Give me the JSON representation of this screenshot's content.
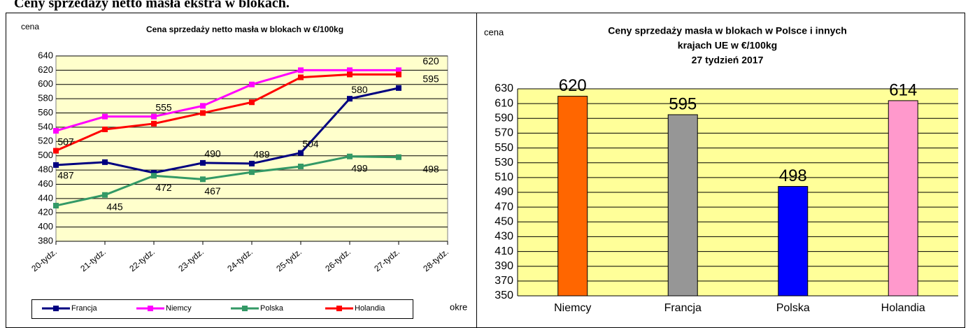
{
  "heading": "Ceny sprzedaży netto masła ekstra w blokach.",
  "chart_data": [
    {
      "type": "line",
      "title": "Cena sprzedaży netto masła  w blokach  w €/100kg",
      "ylabel": "cena",
      "xlabel": "okre",
      "categories": [
        "20-tydz.",
        "21-tydz.",
        "22-tydz.",
        "23-tydz.",
        "24-tydz.",
        "25-tydz.",
        "26-tydz.",
        "27-tydz.",
        "28-tydz."
      ],
      "ylim": [
        380,
        640
      ],
      "yticks": [
        380,
        400,
        420,
        440,
        460,
        480,
        500,
        520,
        540,
        560,
        580,
        600,
        620,
        640
      ],
      "grid": true,
      "legend": "bottom",
      "series": [
        {
          "name": "Francja",
          "color": "#000080",
          "values": [
            487,
            491,
            476,
            490,
            489,
            504,
            580,
            595,
            null
          ],
          "value_labels": [
            "487",
            null,
            null,
            "490",
            "489",
            "504",
            "580",
            "595",
            null
          ]
        },
        {
          "name": "Niemcy",
          "color": "#ff00ff",
          "values": [
            535,
            555,
            555,
            570,
            600,
            620,
            620,
            620,
            null
          ],
          "value_labels": [
            null,
            null,
            "555",
            null,
            null,
            null,
            null,
            "620",
            null
          ]
        },
        {
          "name": "Polska",
          "color": "#339966",
          "values": [
            430,
            445,
            472,
            467,
            477,
            485,
            499,
            498,
            null
          ],
          "value_labels": [
            null,
            "445",
            "472",
            "467",
            null,
            null,
            "499",
            "498",
            null
          ]
        },
        {
          "name": "Holandia",
          "color": "#ff0000",
          "values": [
            507,
            537,
            545,
            560,
            575,
            610,
            614,
            614,
            null
          ],
          "value_labels": [
            "507",
            null,
            null,
            null,
            null,
            null,
            null,
            null,
            null
          ]
        }
      ]
    },
    {
      "type": "bar",
      "title": [
        "Ceny sprzedaży masła w blokach w Polsce i  innych",
        "krajach UE w €/100kg",
        "27 tydzień 2017"
      ],
      "ylabel": "cena",
      "categories": [
        "Niemcy",
        "Francja",
        "Polska",
        "Holandia"
      ],
      "values": [
        620,
        595,
        498,
        614
      ],
      "colors": [
        "#ff6600",
        "#969696",
        "#0000ff",
        "#ff99cc"
      ],
      "ylim": [
        350,
        630
      ],
      "yticks": [
        350,
        370,
        390,
        410,
        430,
        450,
        470,
        490,
        510,
        530,
        550,
        570,
        590,
        610,
        630
      ],
      "grid": true
    }
  ]
}
